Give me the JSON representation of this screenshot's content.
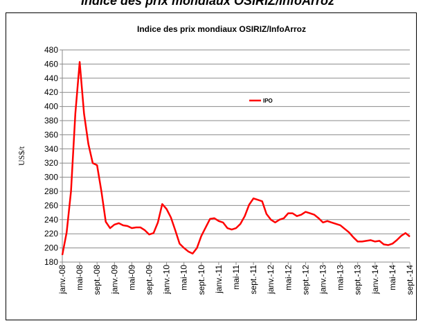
{
  "heading": "Indice des prix mondiaux OSIRIZ/InfoArroz",
  "chart_data": {
    "type": "line",
    "title": "Indice des prix mondiaux OSIRIZ/InfoArroz",
    "ylabel": "US$/t",
    "categories": [
      "janv.-08",
      null,
      null,
      null,
      "mai-08",
      null,
      null,
      null,
      "sept.-08",
      null,
      null,
      null,
      "janv.-09",
      null,
      null,
      null,
      "mai-09",
      null,
      null,
      null,
      "sept.-09",
      null,
      null,
      null,
      "janv.-10",
      null,
      null,
      null,
      "mai-10",
      null,
      null,
      null,
      "sept.-10",
      null,
      null,
      null,
      "janv.-11",
      null,
      null,
      null,
      "mai-11",
      null,
      null,
      null,
      "sept.-11",
      null,
      null,
      null,
      "janv.-12",
      null,
      null,
      null,
      "mai-12",
      null,
      null,
      null,
      "sept.-12",
      null,
      null,
      null,
      "janv.-13",
      null,
      null,
      null,
      "mai-13",
      null,
      null,
      null,
      "sept.-13",
      null,
      null,
      null,
      "janv.-14",
      null,
      null,
      null,
      "mai-14",
      null,
      null,
      null,
      "sept.-14"
    ],
    "series": [
      {
        "name": "IPO",
        "color": "#ff0000",
        "values": [
          190,
          222,
          280,
          390,
          463,
          390,
          347,
          320,
          317,
          280,
          237,
          228,
          233,
          235,
          232,
          231,
          228,
          229,
          229,
          225,
          219,
          221,
          236,
          262,
          255,
          243,
          225,
          206,
          200,
          195,
          192,
          200,
          217,
          229,
          241,
          242,
          238,
          236,
          228,
          226,
          228,
          234,
          245,
          261,
          270,
          268,
          266,
          248,
          240,
          236,
          240,
          242,
          249,
          249,
          245,
          247,
          251,
          249,
          247,
          242,
          236,
          238,
          236,
          234,
          232,
          227,
          222,
          215,
          209,
          209,
          210,
          211,
          209,
          210,
          205,
          204,
          206,
          211,
          217,
          221,
          216
        ]
      }
    ],
    "ylim": [
      180,
      480
    ],
    "yticks": [
      180,
      200,
      220,
      240,
      260,
      280,
      300,
      320,
      340,
      360,
      380,
      400,
      420,
      440,
      460,
      480
    ],
    "grid": true
  }
}
